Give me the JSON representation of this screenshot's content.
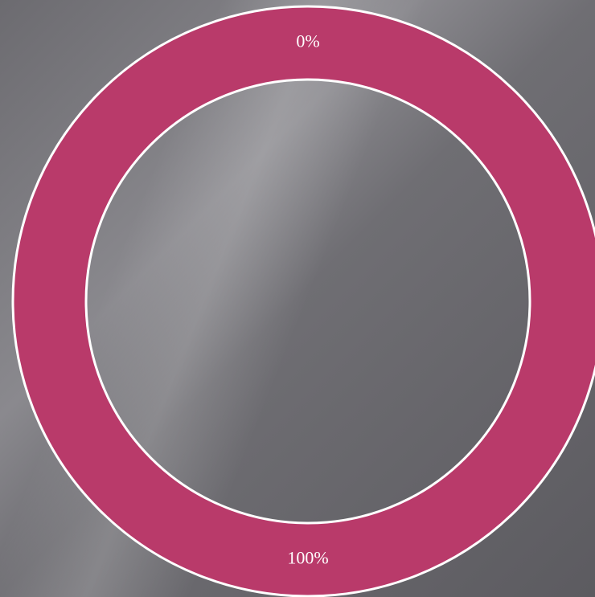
{
  "chart_data": {
    "type": "donut",
    "values": [
      0,
      100
    ],
    "value_labels": [
      "0%",
      "100%"
    ],
    "colors": [
      "#b93a6a",
      "#b93a6a"
    ]
  }
}
